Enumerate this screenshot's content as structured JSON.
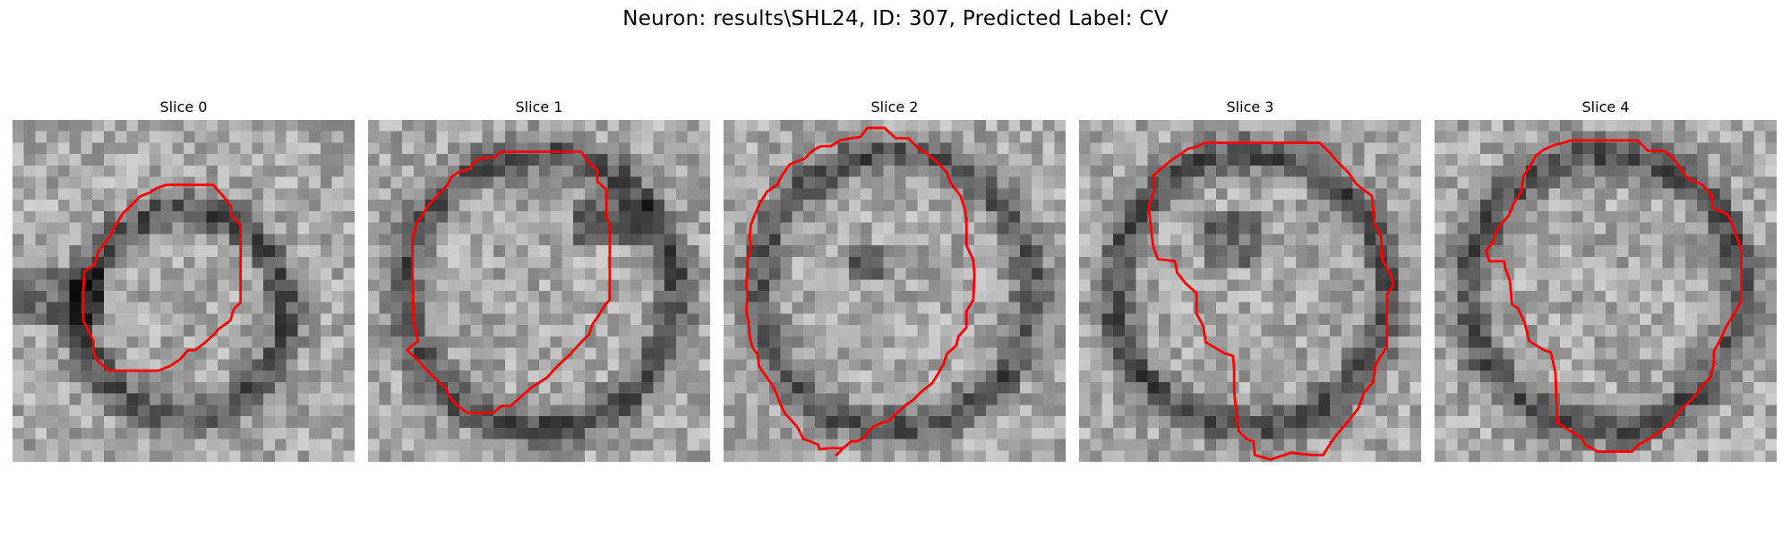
{
  "figure": {
    "suptitle": "Neuron: results\\SHL24, ID: 307, Predicted Label: CV",
    "contour_color": "#ff0000",
    "colormap": "gray",
    "grid_size": 30
  },
  "slices": [
    {
      "title": "Slice 0",
      "ring": "crescent",
      "contour": [
        [
          15,
          5.7
        ],
        [
          17.6,
          5.7
        ],
        [
          18.3,
          6.5
        ],
        [
          19.2,
          7.6
        ],
        [
          19.2,
          8.4
        ],
        [
          20,
          9.2
        ],
        [
          20,
          16
        ],
        [
          19.4,
          16.6
        ],
        [
          19.1,
          17.6
        ],
        [
          18,
          18.4
        ],
        [
          17.8,
          18.7
        ],
        [
          16.8,
          19.6
        ],
        [
          16,
          20.2
        ],
        [
          15.4,
          20.2
        ],
        [
          14.7,
          21
        ],
        [
          13.8,
          21.6
        ],
        [
          12.8,
          22
        ],
        [
          11.1,
          22
        ],
        [
          9.1,
          22
        ],
        [
          8.5,
          22
        ],
        [
          7.5,
          21.2
        ],
        [
          7.1,
          20.4
        ],
        [
          7.1,
          19.4
        ],
        [
          6.2,
          17.6
        ],
        [
          6.2,
          16.8
        ],
        [
          6.2,
          15.1
        ],
        [
          6.3,
          13.3
        ],
        [
          7.2,
          12.7
        ],
        [
          7.5,
          11.6
        ],
        [
          8.2,
          10.7
        ],
        [
          8.6,
          10.1
        ],
        [
          9,
          9.3
        ],
        [
          9.7,
          8.2
        ],
        [
          10.5,
          7.4
        ],
        [
          11.2,
          6.7
        ],
        [
          12,
          6.4
        ],
        [
          12.6,
          6
        ],
        [
          13.5,
          5.7
        ]
      ]
    },
    {
      "title": "Slice 1",
      "ring": "full",
      "contour": [
        [
          14,
          2.8
        ],
        [
          18.7,
          2.8
        ],
        [
          19.4,
          3.8
        ],
        [
          20.1,
          4.4
        ],
        [
          20.1,
          5.4
        ],
        [
          20.9,
          6.1
        ],
        [
          20.9,
          8.5
        ],
        [
          21.2,
          9.2
        ],
        [
          21.2,
          15.8
        ],
        [
          20.8,
          16.2
        ],
        [
          20.2,
          17.2
        ],
        [
          19.7,
          17.9
        ],
        [
          19.4,
          18.8
        ],
        [
          18.6,
          19.6
        ],
        [
          17.6,
          20.7
        ],
        [
          16.6,
          21.6
        ],
        [
          15.7,
          22.6
        ],
        [
          14.3,
          23.5
        ],
        [
          13.2,
          24.5
        ],
        [
          12.5,
          25.1
        ],
        [
          11.7,
          25.1
        ],
        [
          11,
          25.7
        ],
        [
          8.7,
          25.7
        ],
        [
          7.9,
          25.1
        ],
        [
          7.4,
          24.6
        ],
        [
          7.1,
          24.2
        ],
        [
          6.8,
          23.5
        ],
        [
          5.8,
          22.6
        ],
        [
          4.9,
          21.7
        ],
        [
          4.3,
          21
        ],
        [
          3.4,
          20.2
        ],
        [
          4.4,
          19.4
        ],
        [
          4,
          17.7
        ],
        [
          3.9,
          13.6
        ],
        [
          3.9,
          10.3
        ],
        [
          4.3,
          9
        ],
        [
          4.8,
          8.3
        ],
        [
          5.2,
          7.6
        ],
        [
          6.5,
          6.2
        ],
        [
          6.9,
          5.8
        ],
        [
          7.3,
          5
        ],
        [
          7.9,
          4.6
        ],
        [
          8.9,
          4.3
        ],
        [
          9.4,
          3.6
        ],
        [
          10.2,
          3.3
        ],
        [
          11.1,
          3.3
        ],
        [
          11.6,
          2.8
        ],
        [
          12.7,
          2.8
        ]
      ]
    },
    {
      "title": "Slice 2",
      "ring": "full",
      "contour": [
        [
          12.6,
          0.7
        ],
        [
          14.1,
          0.7
        ],
        [
          15.1,
          1.6
        ],
        [
          16.2,
          1.6
        ],
        [
          17,
          2.4
        ],
        [
          17.9,
          3
        ],
        [
          18.7,
          3.7
        ],
        [
          19.6,
          4.6
        ],
        [
          19.9,
          5.5
        ],
        [
          20.8,
          6.7
        ],
        [
          21.2,
          8
        ],
        [
          21.3,
          8.7
        ],
        [
          21.3,
          11
        ],
        [
          21.9,
          12.3
        ],
        [
          22,
          13.5
        ],
        [
          21.9,
          15.8
        ],
        [
          21.3,
          16.8
        ],
        [
          21.3,
          18.2
        ],
        [
          20.6,
          19
        ],
        [
          20.4,
          19.8
        ],
        [
          19.6,
          20.5
        ],
        [
          19.3,
          21.4
        ],
        [
          18.8,
          22.3
        ],
        [
          18.3,
          23.1
        ],
        [
          17.4,
          23.8
        ],
        [
          16.6,
          24.6
        ],
        [
          16,
          25
        ],
        [
          15.3,
          25.6
        ],
        [
          14.5,
          26.4
        ],
        [
          13.8,
          26.6
        ],
        [
          13,
          27
        ],
        [
          12.3,
          27.9
        ],
        [
          11.7,
          28.2
        ],
        [
          11.2,
          28.2
        ],
        [
          10.5,
          28.8
        ],
        [
          9.9,
          29.4
        ],
        [
          10.5,
          28.8
        ],
        [
          9.3,
          28.8
        ],
        [
          8.4,
          28.9
        ],
        [
          8.3,
          28.5
        ],
        [
          7.6,
          28.2
        ],
        [
          7,
          28
        ],
        [
          6.5,
          27
        ],
        [
          6,
          26.4
        ],
        [
          5.4,
          25.8
        ],
        [
          5,
          25
        ],
        [
          4.6,
          23.9
        ],
        [
          4.3,
          23.3
        ],
        [
          3.8,
          22.6
        ],
        [
          3.1,
          21.6
        ],
        [
          3,
          20.6
        ],
        [
          2.5,
          19.9
        ],
        [
          2.3,
          19
        ],
        [
          2.2,
          17.8
        ],
        [
          2,
          16.8
        ],
        [
          2.1,
          15.4
        ],
        [
          2,
          14.2
        ],
        [
          2.1,
          13.2
        ],
        [
          2.1,
          12.2
        ],
        [
          2.4,
          11.3
        ],
        [
          2.3,
          10.2
        ],
        [
          2.4,
          9.2
        ],
        [
          2.7,
          8.4
        ],
        [
          3.2,
          7.3
        ],
        [
          3.8,
          6.3
        ],
        [
          4.7,
          5.7
        ],
        [
          5.1,
          4.9
        ],
        [
          5.8,
          3.9
        ],
        [
          7.1,
          3.4
        ],
        [
          7.8,
          2.7
        ],
        [
          8.5,
          2.3
        ],
        [
          9.4,
          2.3
        ],
        [
          10.2,
          1.8
        ],
        [
          11.2,
          1.6
        ],
        [
          12,
          1.5
        ]
      ]
    },
    {
      "title": "Slice 3",
      "ring": "irregular",
      "contour": [
        [
          11,
          2
        ],
        [
          21.1,
          2
        ],
        [
          22,
          2.9
        ],
        [
          22.6,
          3.6
        ],
        [
          23.6,
          4.6
        ],
        [
          24.3,
          5.6
        ],
        [
          25.7,
          6.7
        ],
        [
          25.8,
          8.1
        ],
        [
          25.9,
          9.1
        ],
        [
          26.5,
          10.3
        ],
        [
          26.6,
          12.3
        ],
        [
          27.3,
          13.5
        ],
        [
          27.6,
          14.5
        ],
        [
          27,
          15.3
        ],
        [
          27,
          19.9
        ],
        [
          26.4,
          20.8
        ],
        [
          26,
          21.5
        ],
        [
          25.8,
          23
        ],
        [
          25,
          23.9
        ],
        [
          24.5,
          25.3
        ],
        [
          23.8,
          26.2
        ],
        [
          23.2,
          26.9
        ],
        [
          22.6,
          27.6
        ],
        [
          22.1,
          28.3
        ],
        [
          21.4,
          29.4
        ],
        [
          20.4,
          29.4
        ],
        [
          21.4,
          29.4
        ],
        [
          20.4,
          29.4
        ],
        [
          18.6,
          29.2
        ],
        [
          16.8,
          29.8
        ],
        [
          15.4,
          29.4
        ],
        [
          15.3,
          28.2
        ],
        [
          14.7,
          28
        ],
        [
          14,
          27.3
        ],
        [
          13.8,
          25.8
        ],
        [
          13.6,
          23.8
        ],
        [
          13.6,
          21.9
        ],
        [
          13.5,
          20.7
        ],
        [
          12.8,
          20.5
        ],
        [
          11.1,
          19.5
        ],
        [
          10.9,
          18.1
        ],
        [
          10.3,
          17
        ],
        [
          10.3,
          15.2
        ],
        [
          9.3,
          14.3
        ],
        [
          8.6,
          13.4
        ],
        [
          8.4,
          12.4
        ],
        [
          6.9,
          12.2
        ],
        [
          6.5,
          11.1
        ],
        [
          6.3,
          9.4
        ],
        [
          6.1,
          7.6
        ],
        [
          6.6,
          6.2
        ],
        [
          6.5,
          4.9
        ],
        [
          7.3,
          4.2
        ],
        [
          8,
          3.6
        ],
        [
          8.9,
          3
        ],
        [
          9.6,
          2.5
        ],
        [
          10.2,
          2.4
        ]
      ]
    },
    {
      "title": "Slice 4",
      "ring": "irregular",
      "contour": [
        [
          11.9,
          1.8
        ],
        [
          17.8,
          1.8
        ],
        [
          18.7,
          2.7
        ],
        [
          20.1,
          2.7
        ],
        [
          20.9,
          3.3
        ],
        [
          21.6,
          4.3
        ],
        [
          22.2,
          5.1
        ],
        [
          23.5,
          5.7
        ],
        [
          24.3,
          6.6
        ],
        [
          24.4,
          7.7
        ],
        [
          25.7,
          8.3
        ],
        [
          26.2,
          9.4
        ],
        [
          26.9,
          11.4
        ],
        [
          26.9,
          15.9
        ],
        [
          26.4,
          16.8
        ],
        [
          25.6,
          18.1
        ],
        [
          25,
          19.4
        ],
        [
          24.5,
          20.3
        ],
        [
          24.5,
          21.3
        ],
        [
          24.2,
          22.6
        ],
        [
          23.5,
          23.3
        ],
        [
          22.6,
          24.5
        ],
        [
          21.8,
          25.2
        ],
        [
          20.9,
          26.4
        ],
        [
          20,
          27.2
        ],
        [
          18.8,
          28
        ],
        [
          17.9,
          28.5
        ],
        [
          17.3,
          29.1
        ],
        [
          16,
          29.1
        ],
        [
          14.3,
          29.1
        ],
        [
          13.2,
          28.5
        ],
        [
          12.9,
          27.9
        ],
        [
          12.1,
          27.4
        ],
        [
          10.8,
          26.6
        ],
        [
          10.7,
          24.9
        ],
        [
          10.6,
          22.2
        ],
        [
          10.2,
          20.4
        ],
        [
          9.6,
          20.2
        ],
        [
          8.3,
          19.4
        ],
        [
          7.9,
          17.8
        ],
        [
          7.3,
          16.5
        ],
        [
          6.8,
          16.2
        ],
        [
          6.6,
          14.1
        ],
        [
          6.2,
          13
        ],
        [
          6.1,
          12.4
        ],
        [
          4.8,
          12.4
        ],
        [
          4.5,
          11.5
        ],
        [
          5.1,
          10.8
        ],
        [
          5.3,
          10
        ],
        [
          5.8,
          9.2
        ],
        [
          6.5,
          8.4
        ],
        [
          6.9,
          7.4
        ],
        [
          7.6,
          6.3
        ],
        [
          7.8,
          4.9
        ],
        [
          8.3,
          4.2
        ],
        [
          8.9,
          3.1
        ],
        [
          9.6,
          2.6
        ],
        [
          10.5,
          2.2
        ],
        [
          11.3,
          2
        ]
      ]
    }
  ]
}
